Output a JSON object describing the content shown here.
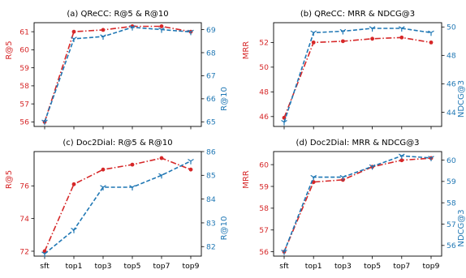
{
  "colors": {
    "left": "#d62728",
    "right": "#1f77b4",
    "frame": "#000000"
  },
  "chart_data": [
    {
      "type": "line",
      "title": "(a) QReCC: R@5 & R@10",
      "categories": [
        "sft",
        "top1",
        "top3",
        "top5",
        "top7",
        "top9"
      ],
      "left_axis": {
        "label": "R@5",
        "ylim": [
          55.75,
          61.5
        ],
        "ticks": [
          56,
          57,
          58,
          59,
          60,
          61
        ]
      },
      "right_axis": {
        "label": "R@10",
        "ylim": [
          64.8,
          69.3
        ],
        "ticks": [
          65,
          66,
          67,
          68,
          69
        ]
      },
      "series": [
        {
          "axis": "left",
          "values": [
            56.0,
            61.0,
            61.1,
            61.3,
            61.3,
            61.0
          ],
          "color": "#d62728",
          "style": "dashdot",
          "marker": "dot"
        },
        {
          "axis": "right",
          "values": [
            65.0,
            68.6,
            68.7,
            69.1,
            69.0,
            68.9
          ],
          "color": "#1f77b4",
          "style": "dashed",
          "marker": "tri"
        }
      ]
    },
    {
      "type": "line",
      "title": "(b) QReCC: MRR & NDCG@3",
      "categories": [
        "sft",
        "top1",
        "top3",
        "top5",
        "top7",
        "top9"
      ],
      "left_axis": {
        "label": "MRR",
        "ylim": [
          45.2,
          53.6
        ],
        "ticks": [
          46,
          48,
          50,
          52
        ]
      },
      "right_axis": {
        "label": "NDCG@3",
        "ylim": [
          43.0,
          50.3
        ],
        "ticks": [
          44,
          46,
          48,
          50
        ]
      },
      "series": [
        {
          "axis": "left",
          "values": [
            45.9,
            52.0,
            52.1,
            52.3,
            52.4,
            52.0
          ],
          "color": "#d62728",
          "style": "dashdot",
          "marker": "dot"
        },
        {
          "axis": "right",
          "values": [
            43.3,
            49.6,
            49.7,
            49.9,
            49.9,
            49.6
          ],
          "color": "#1f77b4",
          "style": "dashed",
          "marker": "tri"
        }
      ]
    },
    {
      "type": "line",
      "title": "(c) Doc2Dial: R@5 & R@10",
      "categories": [
        "sft",
        "top1",
        "top3",
        "top5",
        "top7",
        "top9"
      ],
      "left_axis": {
        "label": "R@5",
        "ylim": [
          71.7,
          78.1
        ],
        "ticks": [
          72,
          74,
          76
        ]
      },
      "right_axis": {
        "label": "R@10",
        "ylim": [
          81.6,
          86.0
        ],
        "ticks": [
          82,
          83,
          84,
          85,
          86
        ]
      },
      "series": [
        {
          "axis": "left",
          "values": [
            72.0,
            76.1,
            77.0,
            77.3,
            77.7,
            77.0
          ],
          "color": "#d62728",
          "style": "dashdot",
          "marker": "dot"
        },
        {
          "axis": "right",
          "values": [
            81.7,
            82.7,
            84.5,
            84.5,
            85.0,
            85.6
          ],
          "color": "#1f77b4",
          "style": "dashed",
          "marker": "tri"
        }
      ]
    },
    {
      "type": "line",
      "title": "(d) Doc2Dial: MRR & NDCG@3",
      "categories": [
        "sft",
        "top1",
        "top3",
        "top5",
        "top7",
        "top9"
      ],
      "left_axis": {
        "label": "MRR",
        "ylim": [
          55.8,
          60.6
        ],
        "ticks": [
          56,
          57,
          58,
          59,
          60
        ]
      },
      "right_axis": {
        "label": "NDCG@3",
        "ylim": [
          55.5,
          60.4
        ],
        "ticks": [
          56,
          57,
          58,
          59,
          60
        ]
      },
      "series": [
        {
          "axis": "left",
          "values": [
            56.0,
            59.2,
            59.3,
            59.9,
            60.2,
            60.3
          ],
          "color": "#d62728",
          "style": "dashdot",
          "marker": "dot"
        },
        {
          "axis": "right",
          "values": [
            55.7,
            59.2,
            59.2,
            59.7,
            60.2,
            60.1
          ],
          "color": "#1f77b4",
          "style": "dashed",
          "marker": "tri"
        }
      ]
    }
  ]
}
